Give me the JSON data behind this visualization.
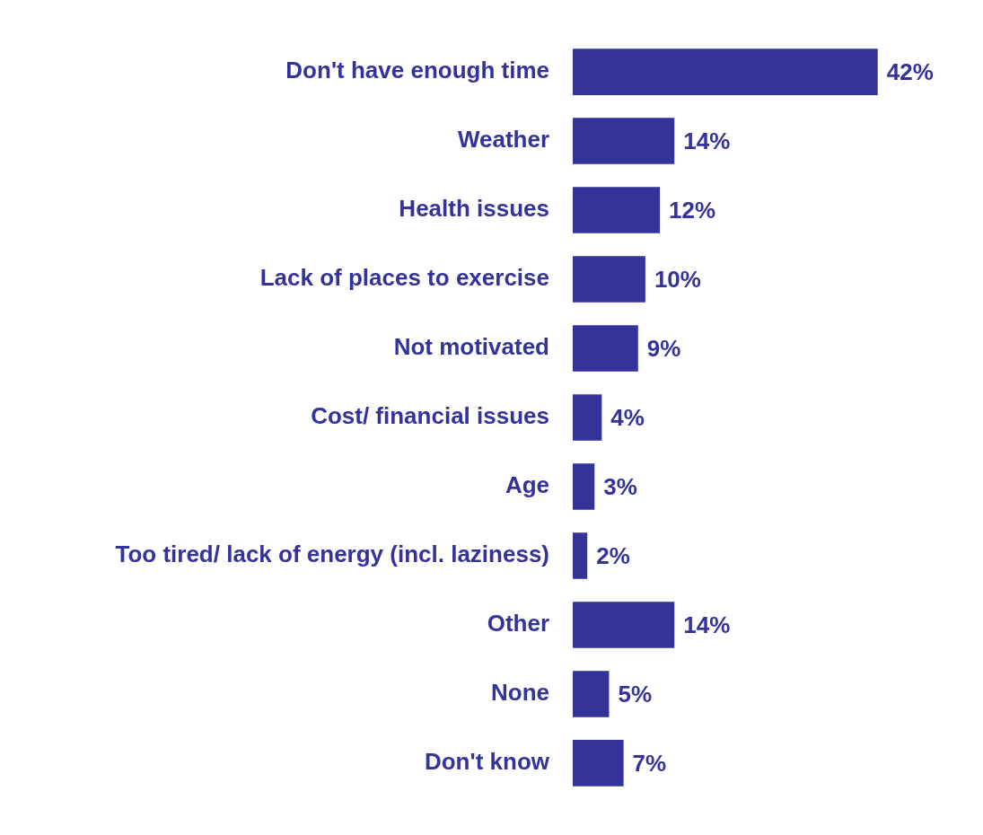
{
  "chart_data": {
    "type": "bar",
    "orientation": "horizontal",
    "categories": [
      "Don't have enough time",
      "Weather",
      "Health issues",
      "Lack of places to exercise",
      "Not motivated",
      "Cost/ financial issues",
      "Age",
      "Too tired/ lack of energy (incl. laziness)",
      "Other",
      "None",
      "Don't know"
    ],
    "values": [
      42,
      14,
      12,
      10,
      9,
      4,
      3,
      2,
      14,
      5,
      7
    ],
    "value_labels": [
      "42%",
      "14%",
      "12%",
      "10%",
      "9%",
      "4%",
      "3%",
      "2%",
      "14%",
      "5%",
      "7%"
    ],
    "color": "#333399"
  }
}
